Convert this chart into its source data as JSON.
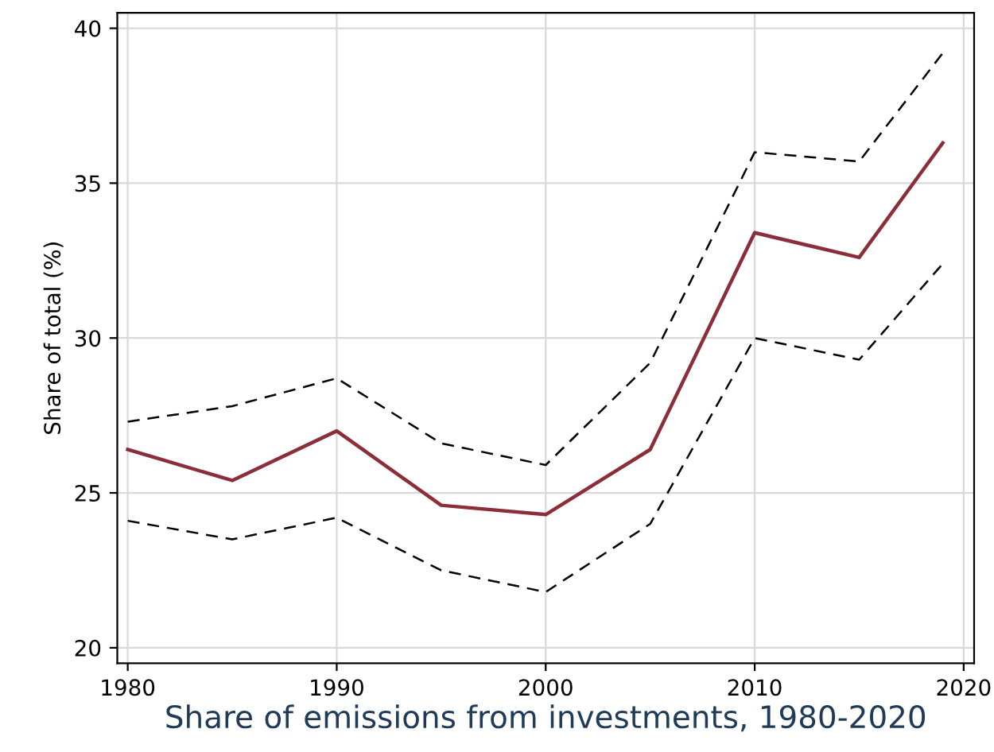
{
  "chart_data": {
    "type": "line",
    "xlabel": "Share of emissions from investments, 1980-2020",
    "ylabel": "Share of total (%)",
    "x": [
      1980,
      1985,
      1990,
      1995,
      2000,
      2005,
      2010,
      2015,
      2019
    ],
    "series": [
      {
        "color": "#8b2e3a",
        "line_style": "solid",
        "values": [
          26.4,
          25.4,
          27.0,
          24.6,
          24.3,
          26.4,
          33.4,
          32.6,
          36.3
        ]
      },
      {
        "color": "#000000",
        "line_style": "dashed",
        "values": [
          27.3,
          27.8,
          28.7,
          26.6,
          25.9,
          29.2,
          36.0,
          35.7,
          39.2
        ]
      },
      {
        "color": "#000000",
        "line_style": "dashed",
        "values": [
          24.1,
          23.5,
          24.2,
          22.5,
          21.8,
          24.0,
          30.0,
          29.3,
          32.4
        ]
      }
    ],
    "xlim": [
      1979.5,
      2020.5
    ],
    "ylim": [
      19.5,
      40.5
    ],
    "xticks": [
      1980,
      1990,
      2000,
      2010,
      2020
    ],
    "yticks": [
      20,
      25,
      30,
      35,
      40
    ],
    "grid": true
  }
}
